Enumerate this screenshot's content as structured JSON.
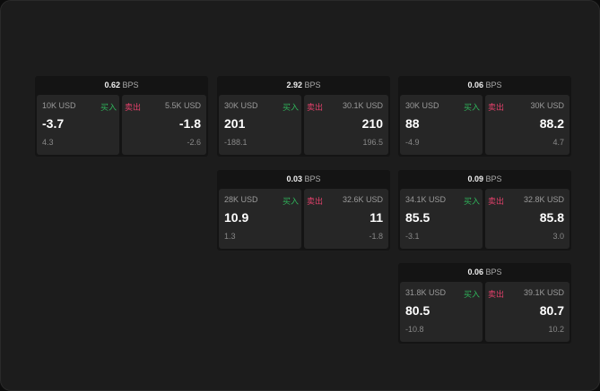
{
  "cards": [
    {
      "spread": "0.62",
      "unit": "BPS",
      "buy": {
        "size": "10K USD",
        "label": "买入",
        "price": "-3.7",
        "change": "4.3"
      },
      "sell": {
        "size": "5.5K USD",
        "label": "卖出",
        "price": "-1.8",
        "change": "-2.6"
      }
    },
    {
      "spread": "2.92",
      "unit": "BPS",
      "buy": {
        "size": "30K USD",
        "label": "买入",
        "price": "201",
        "change": "-188.1"
      },
      "sell": {
        "size": "30.1K USD",
        "label": "卖出",
        "price": "210",
        "change": "196.5"
      }
    },
    {
      "spread": "0.06",
      "unit": "BPS",
      "buy": {
        "size": "30K USD",
        "label": "买入",
        "price": "88",
        "change": "-4.9"
      },
      "sell": {
        "size": "30K USD",
        "label": "卖出",
        "price": "88.2",
        "change": "4.7"
      }
    },
    {
      "spread": "0.03",
      "unit": "BPS",
      "buy": {
        "size": "28K USD",
        "label": "买入",
        "price": "10.9",
        "change": "1.3"
      },
      "sell": {
        "size": "32.6K USD",
        "label": "卖出",
        "price": "11",
        "change": "-1.8"
      }
    },
    {
      "spread": "0.09",
      "unit": "BPS",
      "buy": {
        "size": "34.1K USD",
        "label": "买入",
        "price": "85.5",
        "change": "-3.1"
      },
      "sell": {
        "size": "32.8K USD",
        "label": "卖出",
        "price": "85.8",
        "change": "3.0"
      }
    },
    {
      "spread": "0.06",
      "unit": "BPS",
      "buy": {
        "size": "31.8K USD",
        "label": "买入",
        "price": "80.5",
        "change": "-10.8"
      },
      "sell": {
        "size": "39.1K USD",
        "label": "卖出",
        "price": "80.7",
        "change": "10.2"
      }
    }
  ],
  "colors": {
    "buy": "#2fb35a",
    "sell": "#e0406a"
  }
}
